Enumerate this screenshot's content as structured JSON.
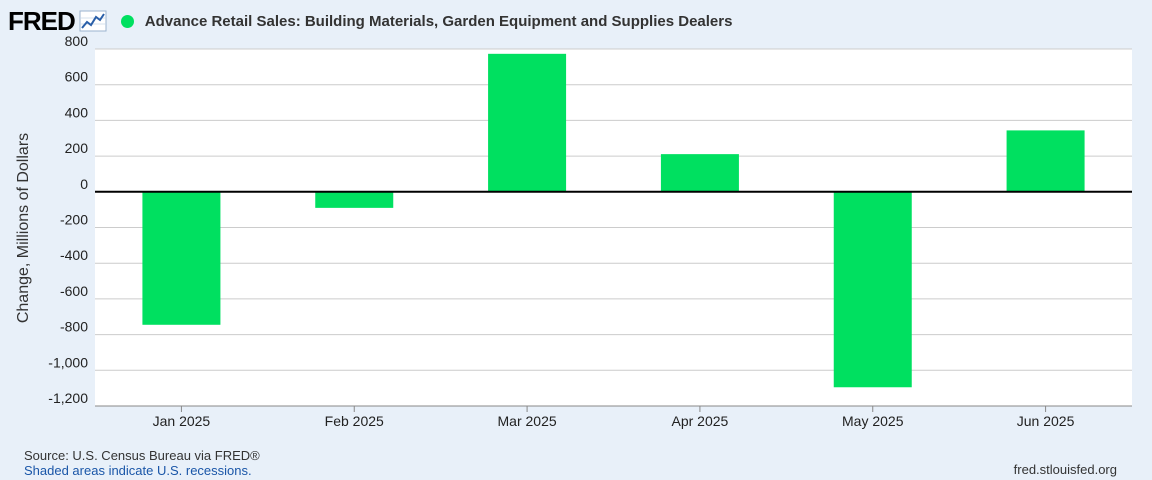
{
  "header": {
    "logo": "FRED",
    "logo_icon": "trend-line-icon",
    "series_title": "Advance Retail Sales: Building Materials, Garden Equipment and Supplies Dealers",
    "series_color": "#00e060"
  },
  "chart_data": {
    "type": "bar",
    "title": "Advance Retail Sales: Building Materials, Garden Equipment and Supplies Dealers",
    "ylabel": "Change, Millions of Dollars",
    "xlabel": "",
    "categories": [
      "Jan 2025",
      "Feb 2025",
      "Mar 2025",
      "Apr 2025",
      "May 2025",
      "Jun 2025"
    ],
    "values": [
      -745,
      -90,
      773,
      211,
      -1095,
      344
    ],
    "ylim": [
      -1200,
      800
    ],
    "yticks": [
      800,
      600,
      400,
      200,
      0,
      -200,
      -400,
      -600,
      -800,
      -1000,
      -1200
    ],
    "ytick_labels": [
      "800",
      "600",
      "400",
      "200",
      "0",
      "-200",
      "-400",
      "-600",
      "-800",
      "-1,000",
      "-1,200"
    ],
    "grid": true,
    "bar_color": "#00e060"
  },
  "footer": {
    "source": "Source: U.S. Census Bureau via FRED®",
    "recessions": "Shaded areas indicate U.S. recessions.",
    "url": "fred.stlouisfed.org"
  }
}
